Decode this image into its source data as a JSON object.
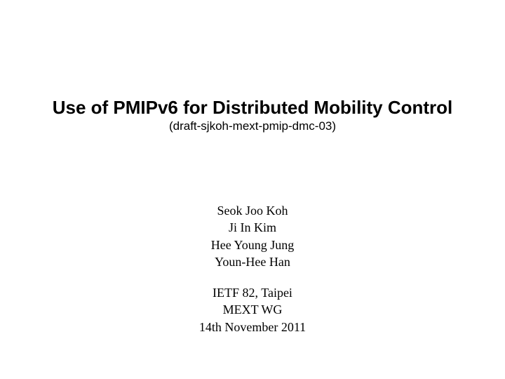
{
  "title": {
    "text": "Use of PMIPv6 for Distributed Mobility Control",
    "fontsize": 26,
    "font_weight": "bold",
    "color": "#000000"
  },
  "subtitle": {
    "text": "(draft-sjkoh-mext-pmip-dmc-03)",
    "fontsize": 17,
    "color": "#000000"
  },
  "authors": {
    "lines": [
      "Seok Joo Koh",
      "Ji In Kim",
      "Hee Young Jung",
      "Youn-Hee Han"
    ],
    "line0": "Seok Joo Koh",
    "line1": "Ji In Kim",
    "line2": "Hee Young Jung",
    "line3": "Youn-Hee Han",
    "fontsize": 18,
    "color": "#000000"
  },
  "meta": {
    "lines": [
      "IETF 82, Taipei",
      "MEXT WG",
      "14th November 2011"
    ],
    "line0": "IETF 82, Taipei",
    "line1": "MEXT WG",
    "line2": "14th November 2011",
    "fontsize": 18,
    "color": "#000000"
  },
  "background_color": "#ffffff",
  "slide_width": 720,
  "slide_height": 540
}
